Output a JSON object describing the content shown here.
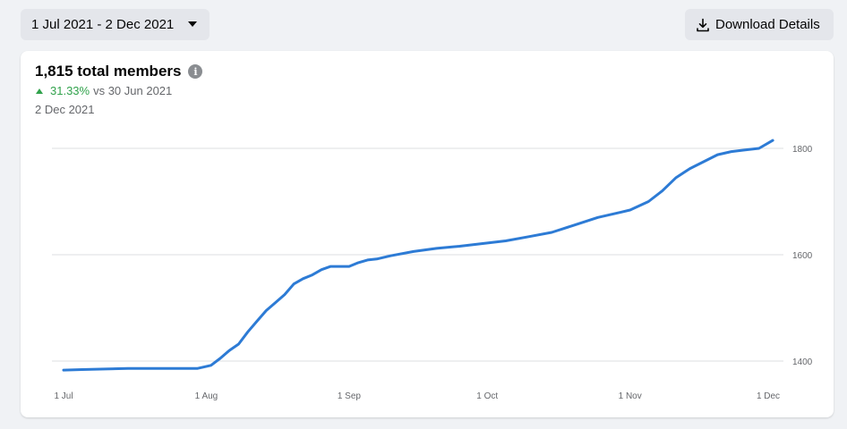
{
  "toolbar": {
    "date_range": "1 Jul 2021 - 2 Dec 2021",
    "download_label": "Download Details"
  },
  "card": {
    "title": "1,815 total members",
    "change_pct": "31.33%",
    "change_vs": "vs 30 Jun 2021",
    "current_date": "2 Dec 2021"
  },
  "colors": {
    "line": "#2d7bd5",
    "positive": "#31a24c",
    "grid": "#dddfe2"
  },
  "chart_data": {
    "type": "line",
    "title": "",
    "xlabel": "",
    "ylabel": "",
    "ylim": [
      1360,
      1830
    ],
    "xlim": [
      "2021-07-01",
      "2021-12-02"
    ],
    "grid": true,
    "x_ticks": [
      {
        "label": "1 Jul",
        "date": "2021-07-01"
      },
      {
        "label": "1 Aug",
        "date": "2021-08-01"
      },
      {
        "label": "1 Sep",
        "date": "2021-09-01"
      },
      {
        "label": "1 Oct",
        "date": "2021-10-01"
      },
      {
        "label": "1 Nov",
        "date": "2021-11-01"
      },
      {
        "label": "1 Dec",
        "date": "2021-12-01"
      }
    ],
    "y_ticks": [
      1400,
      1600,
      1800
    ],
    "series": [
      {
        "x": [
          "2021-07-01",
          "2021-07-05",
          "2021-07-10",
          "2021-07-15",
          "2021-07-20",
          "2021-07-25",
          "2021-07-30",
          "2021-08-02",
          "2021-08-04",
          "2021-08-06",
          "2021-08-08",
          "2021-08-10",
          "2021-08-12",
          "2021-08-14",
          "2021-08-16",
          "2021-08-18",
          "2021-08-20",
          "2021-08-22",
          "2021-08-24",
          "2021-08-26",
          "2021-08-28",
          "2021-08-30",
          "2021-09-01",
          "2021-09-03",
          "2021-09-05",
          "2021-09-07",
          "2021-09-10",
          "2021-09-15",
          "2021-09-20",
          "2021-09-25",
          "2021-09-30",
          "2021-10-05",
          "2021-10-10",
          "2021-10-15",
          "2021-10-20",
          "2021-10-25",
          "2021-10-30",
          "2021-11-01",
          "2021-11-05",
          "2021-11-08",
          "2021-11-11",
          "2021-11-14",
          "2021-11-17",
          "2021-11-20",
          "2021-11-23",
          "2021-11-26",
          "2021-11-29",
          "2021-12-02"
        ],
        "values": [
          1383,
          1384,
          1385,
          1386,
          1386,
          1386,
          1386,
          1392,
          1405,
          1420,
          1432,
          1455,
          1475,
          1495,
          1510,
          1525,
          1545,
          1555,
          1562,
          1572,
          1578,
          1578,
          1578,
          1585,
          1590,
          1592,
          1598,
          1606,
          1612,
          1616,
          1621,
          1626,
          1634,
          1642,
          1656,
          1670,
          1680,
          1684,
          1700,
          1720,
          1745,
          1762,
          1775,
          1788,
          1794,
          1797,
          1800,
          1815
        ]
      }
    ]
  }
}
